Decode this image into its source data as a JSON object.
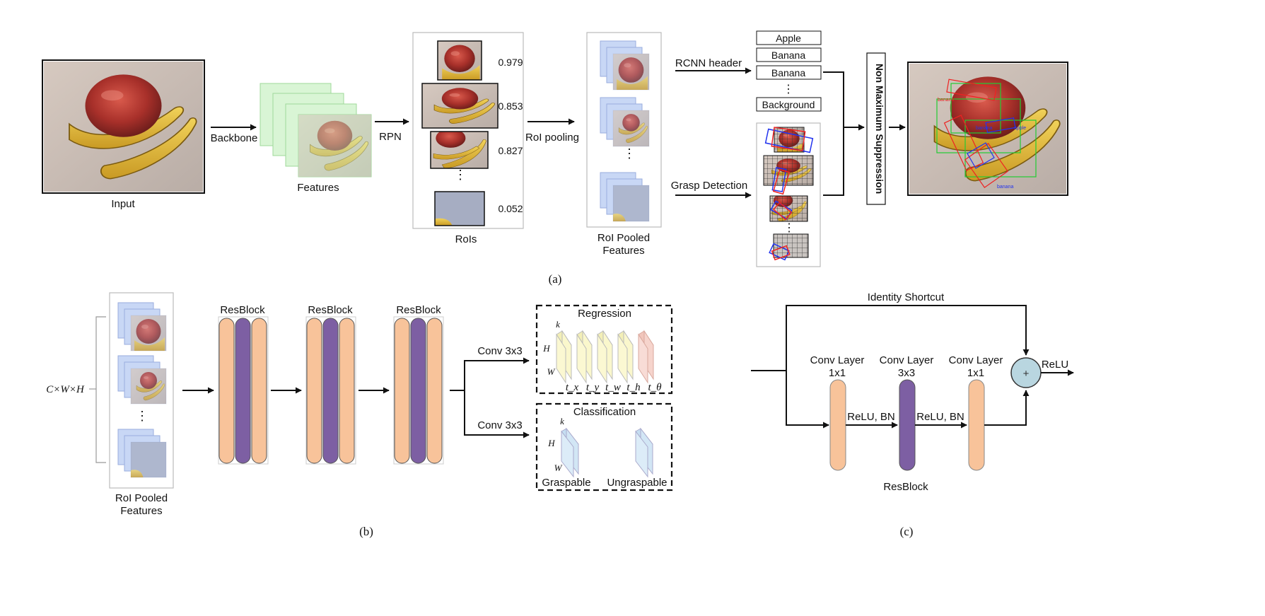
{
  "panel_a": {
    "caption": "(a)",
    "input_label": "Input",
    "backbone_label": "Backbone",
    "features_label": "Features",
    "rpn_label": "RPN",
    "rois_label": "RoIs",
    "scores": [
      "0.979",
      "0.853",
      "0.827",
      "0.052"
    ],
    "roi_pooling_label": "RoI pooling",
    "pooled_label_1": "RoI Pooled",
    "pooled_label_2": "Features",
    "rcnn_header_label": "RCNN header",
    "grasp_detection_label": "Grasp Detection",
    "class_boxes": [
      "Apple",
      "Banana",
      "Banana",
      "Background"
    ],
    "vdots": "⋮",
    "nms_label": "Non Maximum Suppression",
    "result_labels": [
      "banana",
      "apple",
      "banana",
      "banana"
    ]
  },
  "panel_b": {
    "caption": "(b)",
    "input_dim": "C×W×H",
    "pooled_label_1": "RoI Pooled",
    "pooled_label_2": "Features",
    "resblock_labels": [
      "ResBlock",
      "ResBlock",
      "ResBlock"
    ],
    "conv_top": "Conv 3x3",
    "conv_bottom": "Conv 3x3",
    "regression_title": "Regression",
    "regression_params": [
      "t_x",
      "t_y",
      "t_w",
      "t_h",
      "t_θ"
    ],
    "classification_title": "Classification",
    "axis_k": "k",
    "axis_h": "H",
    "axis_w": "W",
    "graspable_label": "Graspable",
    "ungraspable_label": "Ungraspable"
  },
  "panel_c": {
    "caption": "(c)",
    "identity_label": "Identity Shortcut",
    "conv1_line1": "Conv Layer",
    "conv1_line2": "1x1",
    "conv2_line1": "Conv Layer",
    "conv2_line2": "3x3",
    "conv3_line1": "Conv Layer",
    "conv3_line2": "1x1",
    "relu_bn_1": "ReLU, BN",
    "relu_bn_2": "ReLU, BN",
    "plus_symbol": "+",
    "relu_label": "ReLU",
    "resblock_label": "ResBlock"
  },
  "colors": {
    "orange": "#f8c39a",
    "purple": "#7d5fa3",
    "feature_green": "#d9f5d5",
    "feature_blue": "#c8d7f5",
    "sum_circle": "#b9d6e0",
    "reg_yellow": "#fbf8d2",
    "reg_pink": "#f8dcd6",
    "cls_blue": "#dcecf8"
  }
}
